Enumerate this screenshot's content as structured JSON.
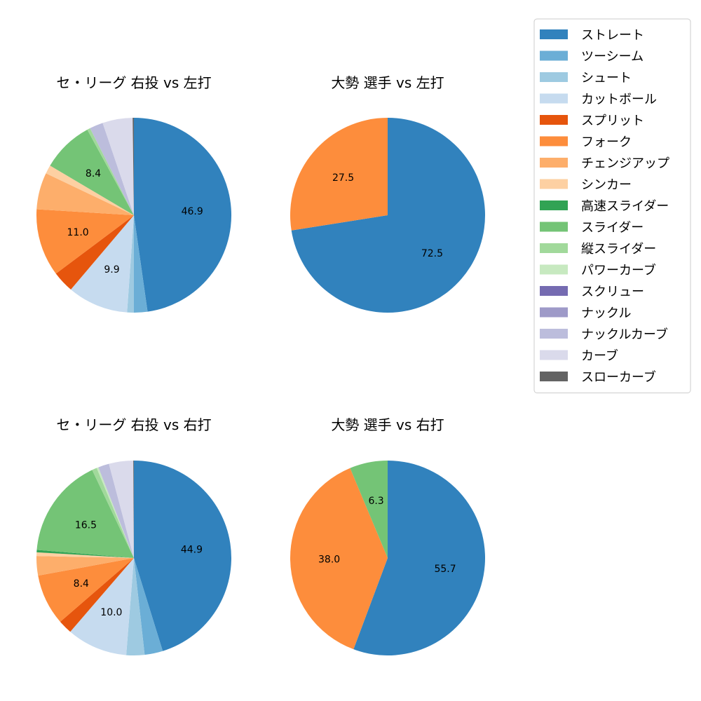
{
  "chart_data": {
    "type": "pie",
    "legend_position": "top-right",
    "legend": [
      {
        "name": "ストレート",
        "color": "#3182bd"
      },
      {
        "name": "ツーシーム",
        "color": "#6baed6"
      },
      {
        "name": "シュート",
        "color": "#9ecae1"
      },
      {
        "name": "カットボール",
        "color": "#c6dbef"
      },
      {
        "name": "スプリット",
        "color": "#e6550d"
      },
      {
        "name": "フォーク",
        "color": "#fd8d3c"
      },
      {
        "name": "チェンジアップ",
        "color": "#fdae6b"
      },
      {
        "name": "シンカー",
        "color": "#fdd0a2"
      },
      {
        "name": "高速スライダー",
        "color": "#31a354"
      },
      {
        "name": "スライダー",
        "color": "#74c476"
      },
      {
        "name": "縦スライダー",
        "color": "#a1d99b"
      },
      {
        "name": "パワーカーブ",
        "color": "#c7e9c0"
      },
      {
        "name": "スクリュー",
        "color": "#756bb1"
      },
      {
        "name": "ナックル",
        "color": "#9e9ac8"
      },
      {
        "name": "ナックルカーブ",
        "color": "#bcbddc"
      },
      {
        "name": "カーブ",
        "color": "#dadaeb"
      },
      {
        "name": "スローカーブ",
        "color": "#636363"
      }
    ],
    "charts": [
      {
        "title": "セ・リーグ 右投 vs 左打",
        "slices": [
          {
            "label": "ストレート",
            "value": 46.9,
            "text": "46.9"
          },
          {
            "label": "ツーシーム",
            "value": 2.2
          },
          {
            "label": "シュート",
            "value": 1.1
          },
          {
            "label": "カットボール",
            "value": 9.9,
            "text": "9.9"
          },
          {
            "label": "スプリット",
            "value": 3.5
          },
          {
            "label": "フォーク",
            "value": 11.0,
            "text": "11.0"
          },
          {
            "label": "チェンジアップ",
            "value": 6.0
          },
          {
            "label": "シンカー",
            "value": 1.4
          },
          {
            "label": "スライダー",
            "value": 8.4,
            "text": "8.4"
          },
          {
            "label": "縦スライダー",
            "value": 0.5
          },
          {
            "label": "ナックルカーブ",
            "value": 2.2
          },
          {
            "label": "カーブ",
            "value": 4.9
          },
          {
            "label": "スローカーブ",
            "value": 0.2
          }
        ]
      },
      {
        "title": "大勢 選手 vs 左打",
        "slices": [
          {
            "label": "ストレート",
            "value": 72.5,
            "text": "72.5"
          },
          {
            "label": "フォーク",
            "value": 27.5,
            "text": "27.5"
          }
        ]
      },
      {
        "title": "セ・リーグ 右投 vs 右打",
        "slices": [
          {
            "label": "ストレート",
            "value": 44.9,
            "text": "44.9"
          },
          {
            "label": "ツーシーム",
            "value": 3.0
          },
          {
            "label": "シュート",
            "value": 3.0
          },
          {
            "label": "カットボール",
            "value": 10.0,
            "text": "10.0"
          },
          {
            "label": "スプリット",
            "value": 2.3
          },
          {
            "label": "フォーク",
            "value": 8.4,
            "text": "8.4"
          },
          {
            "label": "チェンジアップ",
            "value": 3.2
          },
          {
            "label": "シンカー",
            "value": 0.6
          },
          {
            "label": "高速スライダー",
            "value": 0.4
          },
          {
            "label": "スライダー",
            "value": 16.5,
            "text": "16.5"
          },
          {
            "label": "縦スライダー",
            "value": 0.8
          },
          {
            "label": "パワーカーブ",
            "value": 0.3
          },
          {
            "label": "ナックルカーブ",
            "value": 1.8
          },
          {
            "label": "カーブ",
            "value": 4.0
          },
          {
            "label": "スローカーブ",
            "value": 0.1
          }
        ]
      },
      {
        "title": "大勢 選手 vs 右打",
        "slices": [
          {
            "label": "ストレート",
            "value": 55.7,
            "text": "55.7"
          },
          {
            "label": "フォーク",
            "value": 38.0,
            "text": "38.0"
          },
          {
            "label": "スライダー",
            "value": 6.3,
            "text": "6.3"
          }
        ]
      }
    ]
  }
}
